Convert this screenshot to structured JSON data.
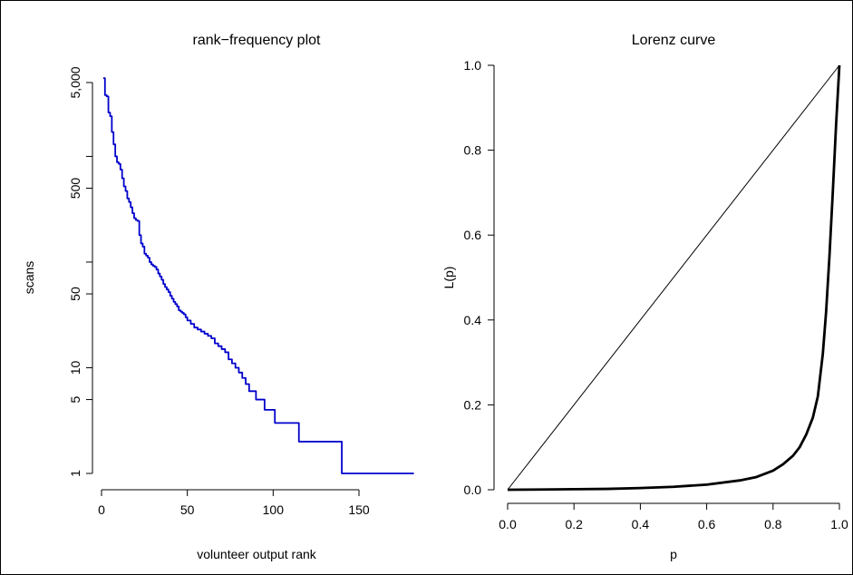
{
  "chart_data": [
    {
      "type": "line",
      "title": "rank−frequency plot",
      "xlabel": "volunteer output rank",
      "ylabel": "scans",
      "y_scale": "log",
      "xlim": [
        1,
        182
      ],
      "ylim": [
        1,
        5500
      ],
      "x_ticks": [
        {
          "value": 0,
          "label": "0"
        },
        {
          "value": 50,
          "label": "50"
        },
        {
          "value": 100,
          "label": "100"
        },
        {
          "value": 150,
          "label": "150"
        }
      ],
      "y_ticks": [
        {
          "value": 1,
          "label": "1"
        },
        {
          "value": 5,
          "label": "5"
        },
        {
          "value": 10,
          "label": "10"
        },
        {
          "value": 50,
          "label": "50"
        },
        {
          "value": 500,
          "label": "500"
        },
        {
          "value": 5000,
          "label": "5,000"
        }
      ],
      "y_minor_ticks": [
        100,
        1000
      ],
      "series": [
        {
          "color": "#0000cc",
          "step": true,
          "points": [
            [
              1,
              5500
            ],
            [
              2,
              3800
            ],
            [
              3,
              3700
            ],
            [
              4,
              2600
            ],
            [
              5,
              2400
            ],
            [
              6,
              1700
            ],
            [
              7,
              1300
            ],
            [
              8,
              1000
            ],
            [
              9,
              880
            ],
            [
              10,
              850
            ],
            [
              11,
              750
            ],
            [
              12,
              620
            ],
            [
              13,
              520
            ],
            [
              14,
              470
            ],
            [
              15,
              400
            ],
            [
              16,
              370
            ],
            [
              17,
              330
            ],
            [
              18,
              290
            ],
            [
              19,
              260
            ],
            [
              20,
              250
            ],
            [
              21,
              245
            ],
            [
              22,
              180
            ],
            [
              23,
              150
            ],
            [
              24,
              140
            ],
            [
              25,
              120
            ],
            [
              26,
              115
            ],
            [
              27,
              110
            ],
            [
              28,
              100
            ],
            [
              29,
              95
            ],
            [
              30,
              92
            ],
            [
              31,
              90
            ],
            [
              32,
              85
            ],
            [
              33,
              78
            ],
            [
              34,
              73
            ],
            [
              35,
              68
            ],
            [
              36,
              62
            ],
            [
              37,
              58
            ],
            [
              38,
              55
            ],
            [
              39,
              52
            ],
            [
              40,
              48
            ],
            [
              41,
              45
            ],
            [
              42,
              42
            ],
            [
              43,
              40
            ],
            [
              44,
              38
            ],
            [
              45,
              35
            ],
            [
              46,
              34
            ],
            [
              47,
              33
            ],
            [
              48,
              32
            ],
            [
              49,
              30
            ],
            [
              50,
              28
            ],
            [
              52,
              26
            ],
            [
              54,
              24
            ],
            [
              56,
              23
            ],
            [
              58,
              22
            ],
            [
              60,
              21
            ],
            [
              62,
              20
            ],
            [
              64,
              19
            ],
            [
              66,
              17
            ],
            [
              68,
              16
            ],
            [
              70,
              15
            ],
            [
              72,
              14
            ],
            [
              74,
              12
            ],
            [
              76,
              11
            ],
            [
              78,
              10
            ],
            [
              80,
              9
            ],
            [
              82,
              8
            ],
            [
              84,
              7
            ],
            [
              86,
              6
            ],
            [
              88,
              6
            ],
            [
              90,
              5
            ],
            [
              94,
              5
            ],
            [
              95,
              4
            ],
            [
              100,
              4
            ],
            [
              101,
              3
            ],
            [
              110,
              3
            ],
            [
              115,
              2
            ],
            [
              139,
              2
            ],
            [
              140,
              1
            ],
            [
              182,
              1
            ]
          ]
        }
      ]
    },
    {
      "type": "line",
      "title": "Lorenz curve",
      "xlabel": "p",
      "ylabel": "L(p)",
      "xlim": [
        0,
        1
      ],
      "ylim": [
        0,
        1
      ],
      "x_ticks": [
        {
          "value": 0.0,
          "label": "0.0"
        },
        {
          "value": 0.2,
          "label": "0.2"
        },
        {
          "value": 0.4,
          "label": "0.4"
        },
        {
          "value": 0.6,
          "label": "0.6"
        },
        {
          "value": 0.8,
          "label": "0.8"
        },
        {
          "value": 1.0,
          "label": "1.0"
        }
      ],
      "y_ticks": [
        {
          "value": 0.0,
          "label": "0.0"
        },
        {
          "value": 0.2,
          "label": "0.2"
        },
        {
          "value": 0.4,
          "label": "0.4"
        },
        {
          "value": 0.6,
          "label": "0.6"
        },
        {
          "value": 0.8,
          "label": "0.8"
        },
        {
          "value": 1.0,
          "label": "1.0"
        }
      ],
      "series": [
        {
          "color": "#000000",
          "points": [
            [
              0,
              0
            ],
            [
              1,
              1
            ]
          ]
        },
        {
          "color": "#000000",
          "bold": true,
          "points": [
            [
              0,
              0
            ],
            [
              0.1,
              0.0006
            ],
            [
              0.2,
              0.0013
            ],
            [
              0.3,
              0.002
            ],
            [
              0.4,
              0.004
            ],
            [
              0.5,
              0.007
            ],
            [
              0.6,
              0.012
            ],
            [
              0.7,
              0.022
            ],
            [
              0.75,
              0.03
            ],
            [
              0.8,
              0.045
            ],
            [
              0.83,
              0.06
            ],
            [
              0.86,
              0.08
            ],
            [
              0.88,
              0.1
            ],
            [
              0.9,
              0.13
            ],
            [
              0.92,
              0.17
            ],
            [
              0.935,
              0.22
            ],
            [
              0.95,
              0.32
            ],
            [
              0.96,
              0.42
            ],
            [
              0.97,
              0.55
            ],
            [
              0.98,
              0.7
            ],
            [
              0.99,
              0.86
            ],
            [
              0.995,
              0.93
            ],
            [
              1.0,
              1.0
            ]
          ]
        }
      ]
    }
  ]
}
